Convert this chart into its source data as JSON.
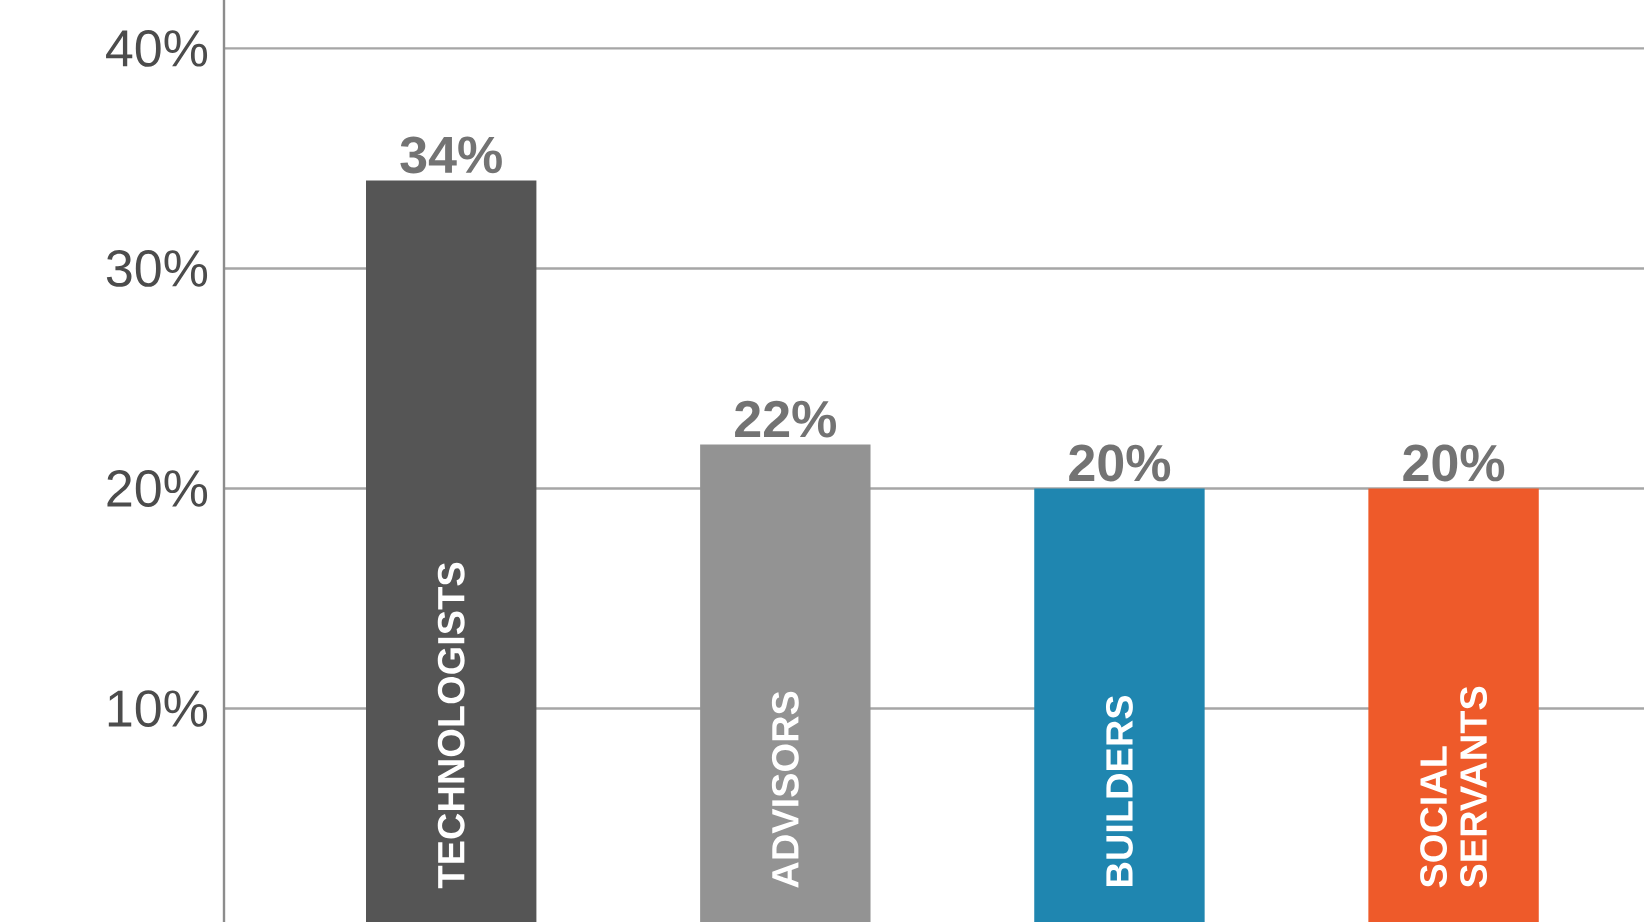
{
  "chart_data": {
    "type": "bar",
    "categories": [
      "TECHNOLOGISTS",
      "ADVISORS",
      "BUILDERS",
      "SOCIAL SERVANTS"
    ],
    "values": [
      34,
      22,
      20,
      20
    ],
    "colors": [
      "#555555",
      "#939393",
      "#1f86b0",
      "#ee5a2a"
    ],
    "value_labels": [
      "34%",
      "22%",
      "20%",
      "20%"
    ],
    "ylim": [
      0.3,
      42.2
    ],
    "yticks": [
      {
        "value": 10,
        "label": "10%"
      },
      {
        "value": 20,
        "label": "20%"
      },
      {
        "value": 30,
        "label": "30%"
      },
      {
        "value": 40,
        "label": "40%"
      }
    ],
    "grid": "y"
  }
}
